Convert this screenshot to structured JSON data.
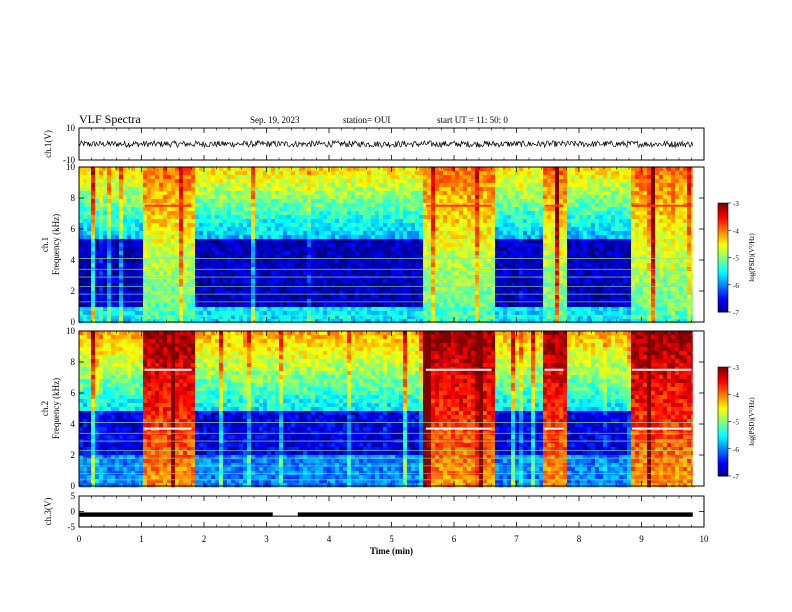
{
  "header": {
    "title": "VLF Spectra",
    "date": "Sep. 19, 2023",
    "station": "station= OUI",
    "start": "start  UT =   11: 50: 0"
  },
  "chart_data": [
    {
      "type": "line",
      "name": "ch1-waveform",
      "ylabel": "ch.1(V)",
      "ylim": [
        -10,
        10
      ],
      "yticks": [
        "10",
        "-10"
      ],
      "x_range_min": [
        0,
        9.82
      ],
      "baseline_v": 0,
      "amplitude_v": 2
    },
    {
      "type": "heatmap",
      "name": "ch1-spectrogram",
      "ylabel": "ch.1\nFrequency (kHz)",
      "ylim": [
        0,
        10
      ],
      "yticks": [
        "0",
        "2",
        "4",
        "6",
        "8",
        "10"
      ],
      "colorbar": {
        "label": "log(PSD)(V²/Hz)",
        "ticks": [
          "-3",
          "-4",
          "-5",
          "-6",
          "-7"
        ],
        "range": [
          -7,
          -3
        ]
      },
      "emission_segments_min": [
        [
          1.0,
          1.8
        ],
        [
          5.5,
          6.6
        ],
        [
          7.4,
          7.75
        ],
        [
          8.8,
          9.82
        ]
      ],
      "tone_khz": [
        7.5
      ]
    },
    {
      "type": "heatmap",
      "name": "ch2-spectrogram",
      "ylabel": "ch.2\nFrequency (kHz)",
      "ylim": [
        0,
        10
      ],
      "yticks": [
        "0",
        "2",
        "4",
        "6",
        "8",
        "10"
      ],
      "colorbar": {
        "label": "log(PSD)(V²/Hz)",
        "ticks": [
          "-3",
          "-4",
          "-5",
          "-6",
          "-7"
        ],
        "range": [
          -7,
          -3
        ]
      },
      "emission_segments_min": [
        [
          1.0,
          1.8
        ],
        [
          5.5,
          6.6
        ],
        [
          7.4,
          7.75
        ],
        [
          8.8,
          9.82
        ]
      ],
      "tone_khz": [
        7.5,
        3.7
      ]
    },
    {
      "type": "line",
      "name": "ch3-waveform",
      "ylabel": "ch.3(V)",
      "ylim": [
        -5,
        5
      ],
      "yticks": [
        "5",
        "0",
        "-5"
      ],
      "xlabel": "Time  (min)",
      "xlim": [
        0,
        10
      ],
      "xticks": [
        "0",
        "1",
        "2",
        "3",
        "4",
        "5",
        "6",
        "7",
        "8",
        "9",
        "10"
      ],
      "level_v": -1,
      "gap_min": [
        3.1,
        3.5
      ]
    }
  ]
}
